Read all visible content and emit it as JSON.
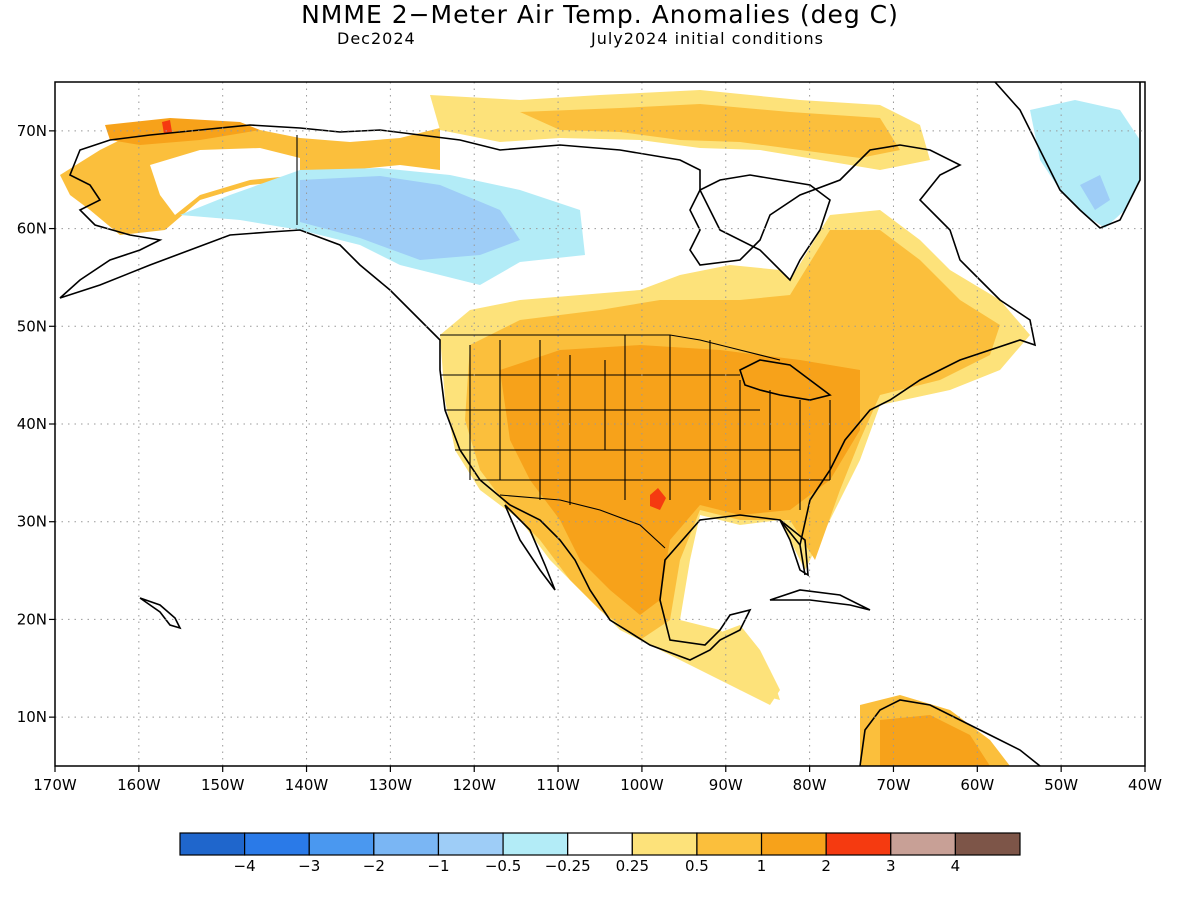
{
  "title": "NMME 2−Meter Air Temp. Anomalies (deg C)",
  "subtitle_left": "Dec2024",
  "subtitle_right": "July2024 initial conditions",
  "lat_ticks": [
    "70N",
    "60N",
    "50N",
    "40N",
    "30N",
    "20N",
    "10N"
  ],
  "lon_ticks": [
    "170W",
    "160W",
    "150W",
    "140W",
    "130W",
    "120W",
    "110W",
    "100W",
    "90W",
    "80W",
    "70W",
    "60W",
    "50W",
    "40W"
  ],
  "colorbar": {
    "colors": [
      "#1f66cc",
      "#2a7ae8",
      "#4a98f0",
      "#7ab6f4",
      "#9ecdf7",
      "#b3ecf7",
      "#ffffff",
      "#fde27a",
      "#fbbf3c",
      "#f7a21a",
      "#f53a10",
      "#c8a096",
      "#7d5548"
    ],
    "labels": [
      "−4",
      "−3",
      "−2",
      "−1",
      "−0.5",
      "−0.25",
      "0.25",
      "0.5",
      "1",
      "2",
      "3",
      "4"
    ]
  },
  "chart_data": {
    "type": "heatmap",
    "title": "NMME 2−Meter Air Temp. Anomalies (deg C)",
    "lon_range": [
      -170,
      -40
    ],
    "lat_range": [
      5,
      75
    ],
    "regions": [
      {
        "name": "western Alaska",
        "level": "0.5 to 1"
      },
      {
        "name": "northern Alaska coast",
        "level": "1 to 2"
      },
      {
        "name": "Yukon and northern British Columbia",
        "level": "-1 to -0.5"
      },
      {
        "name": "contiguous United States",
        "level": "1 to 2"
      },
      {
        "name": "west Texas",
        "level": "2 to 3"
      },
      {
        "name": "Mexico",
        "level": "1 to 2"
      },
      {
        "name": "eastern Canada",
        "level": "1 to 2"
      },
      {
        "name": "northern South America",
        "level": "0.5 to 1"
      },
      {
        "name": "Greenland interior",
        "level": "-0.5 to -0.25"
      }
    ]
  }
}
